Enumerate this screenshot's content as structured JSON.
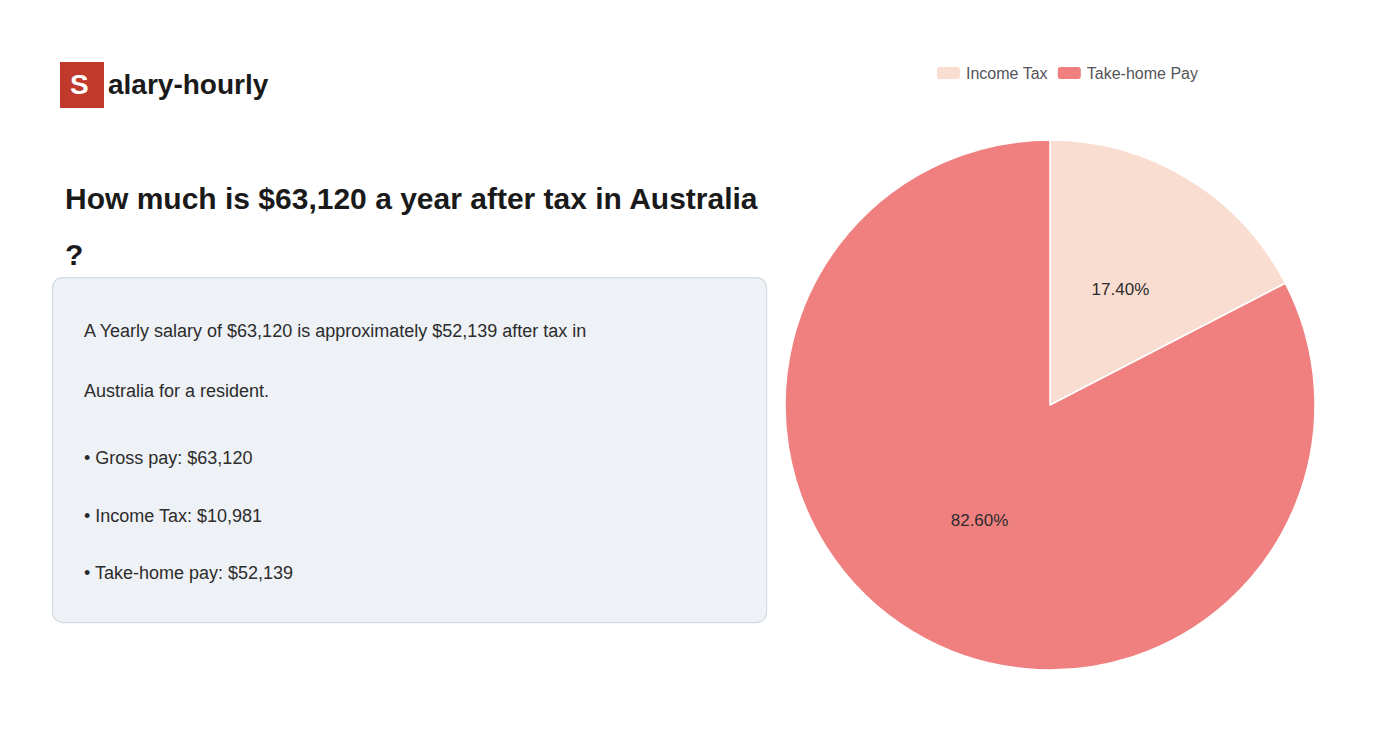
{
  "chart_data": {
    "type": "pie",
    "title": "How much is $63,120 a year after tax in Australia?",
    "annotations": [
      "Salary-hourly",
      "A Yearly salary of $63,120 is approximately $52,139 after tax in",
      "Australia for a resident.",
      "• Gross pay: $63,120",
      "• Income Tax: $10,981",
      "• Take-home pay: $52,139"
    ],
    "categories": [
      "Income Tax",
      "Take-home Pay"
    ],
    "values": [
      17.4,
      82.6
    ],
    "value_labels": [
      "17.40%",
      "82.60%"
    ],
    "colors": [
      "#f9ddd0",
      "#f08080"
    ],
    "data_labels": true,
    "legend": "top"
  }
}
